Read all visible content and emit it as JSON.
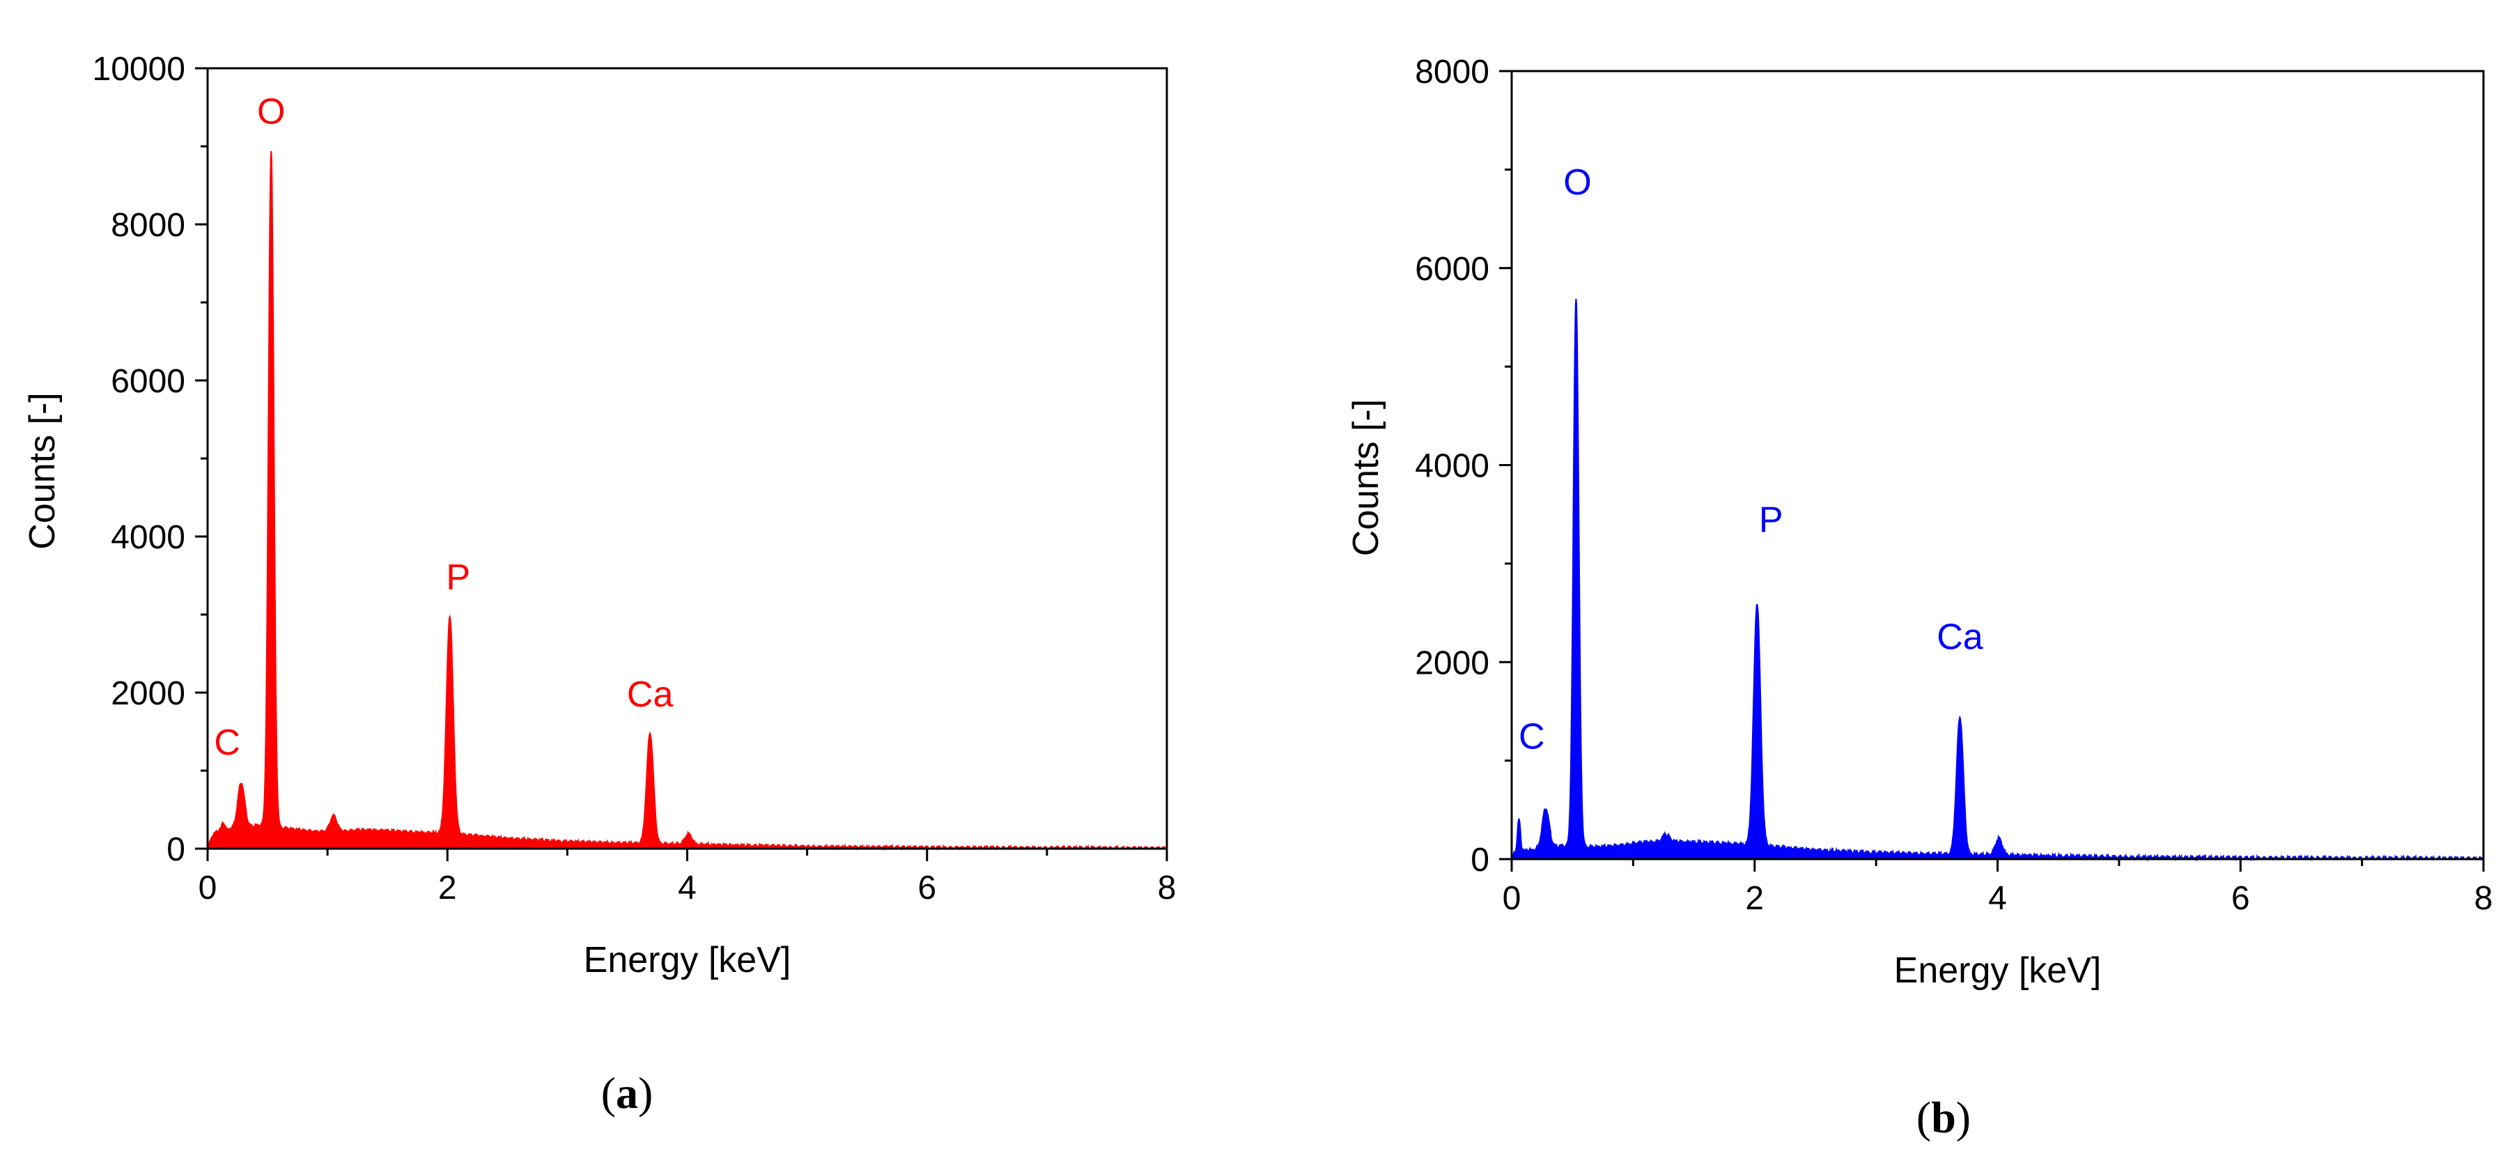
{
  "chart_data": [
    {
      "type": "area",
      "panel_label": "(a)",
      "color": "#ff0000",
      "xlabel": "Energy [keV]",
      "ylabel": "Counts [-]",
      "xlim": [
        0,
        8
      ],
      "ylim": [
        0,
        10000
      ],
      "xticks": [
        0,
        2,
        4,
        6,
        8
      ],
      "yticks": [
        0,
        2000,
        4000,
        6000,
        8000,
        10000
      ],
      "baseline": [
        [
          0,
          0
        ],
        [
          0.03,
          140
        ],
        [
          0.08,
          230
        ],
        [
          0.2,
          260
        ],
        [
          0.35,
          280
        ],
        [
          0.45,
          300
        ],
        [
          0.7,
          250
        ],
        [
          0.9,
          220
        ],
        [
          1.1,
          220
        ],
        [
          1.3,
          240
        ],
        [
          1.5,
          230
        ],
        [
          1.7,
          210
        ],
        [
          1.9,
          200
        ],
        [
          2.2,
          170
        ],
        [
          2.5,
          130
        ],
        [
          3.0,
          90
        ],
        [
          3.5,
          70
        ],
        [
          4.0,
          55
        ],
        [
          4.5,
          40
        ],
        [
          5.0,
          25
        ],
        [
          6.0,
          15
        ],
        [
          7.0,
          10
        ],
        [
          8.0,
          6
        ]
      ],
      "peaks": [
        {
          "label": "C",
          "x": 0.28,
          "y": 850
        },
        {
          "label": "O",
          "x": 0.53,
          "y": 8950
        },
        {
          "label": "",
          "x": 1.05,
          "y": 420
        },
        {
          "label": "P",
          "x": 2.02,
          "y": 2980
        },
        {
          "label": "Ca",
          "x": 3.69,
          "y": 1480
        },
        {
          "label": "",
          "x": 4.01,
          "y": 190
        }
      ],
      "small_spikes": [
        {
          "x": 0.13,
          "y": 330
        }
      ]
    },
    {
      "type": "area",
      "panel_label": "(b)",
      "color": "#0000ff",
      "xlabel": "Energy [keV]",
      "ylabel": "Counts [-]",
      "xlim": [
        0,
        8
      ],
      "ylim": [
        0,
        8000
      ],
      "xticks": [
        0,
        2,
        4,
        6,
        8
      ],
      "yticks": [
        0,
        2000,
        4000,
        6000,
        8000
      ],
      "baseline": [
        [
          0,
          0
        ],
        [
          0.02,
          60
        ],
        [
          0.1,
          80
        ],
        [
          0.2,
          100
        ],
        [
          0.4,
          130
        ],
        [
          0.7,
          120
        ],
        [
          0.9,
          140
        ],
        [
          1.1,
          170
        ],
        [
          1.3,
          180
        ],
        [
          1.5,
          170
        ],
        [
          1.7,
          160
        ],
        [
          1.9,
          150
        ],
        [
          2.2,
          120
        ],
        [
          2.5,
          90
        ],
        [
          3.0,
          65
        ],
        [
          3.5,
          50
        ],
        [
          4.0,
          40
        ],
        [
          4.5,
          30
        ],
        [
          5.0,
          20
        ],
        [
          6.0,
          12
        ],
        [
          7.0,
          8
        ],
        [
          8.0,
          5
        ]
      ],
      "peaks": [
        {
          "label": "C",
          "x": 0.28,
          "y": 520
        },
        {
          "label": "O",
          "x": 0.53,
          "y": 5700
        },
        {
          "label": "",
          "x": 1.27,
          "y": 250
        },
        {
          "label": "P",
          "x": 2.02,
          "y": 2600
        },
        {
          "label": "Ca",
          "x": 3.69,
          "y": 1440
        },
        {
          "label": "",
          "x": 4.01,
          "y": 210
        }
      ],
      "small_spikes": [
        {
          "x": 0.06,
          "y": 400
        }
      ]
    }
  ]
}
